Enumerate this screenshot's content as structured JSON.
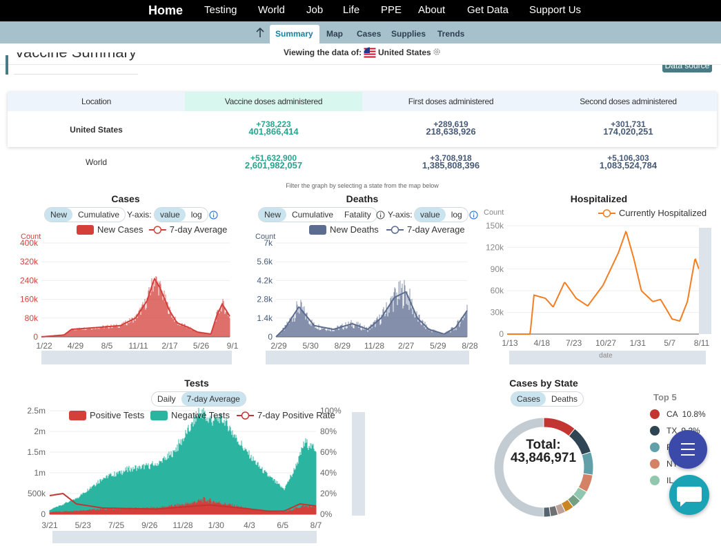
{
  "nav": {
    "items": [
      "Home",
      "Testing",
      "World",
      "Job",
      "Life",
      "PPE",
      "About",
      "Get Data",
      "Support Us"
    ]
  },
  "subnav": {
    "tabs": [
      "Summary",
      "Map",
      "Cases",
      "Supplies",
      "Trends"
    ],
    "active": "Summary"
  },
  "viewing": {
    "label": "Viewing the data of:",
    "country": "United States"
  },
  "section": {
    "title": "Vaccine Summary",
    "data_source": "Data source"
  },
  "table": {
    "headers": [
      "Location",
      "Vaccine doses administered",
      "First doses administered",
      "Second doses administered"
    ],
    "rows": [
      {
        "location": "United States",
        "doses_delta": "+738,223",
        "doses": "401,866,414",
        "first_delta": "+289,619",
        "first": "218,638,926",
        "second_delta": "+301,731",
        "second": "174,020,251"
      },
      {
        "location": "World",
        "doses_delta": "+51,632,900",
        "doses": "2,601,982,057",
        "first_delta": "+3,708,918",
        "first": "1,385,808,396",
        "second_delta": "+5,106,303",
        "second": "1,083,524,784"
      }
    ]
  },
  "filter_hint": "Filter the graph by selecting a state from the map below",
  "cases_chart": {
    "title": "Cases",
    "toggle": [
      "New",
      "Cumulative"
    ],
    "yaxis_label": "Y-axis:",
    "scale": [
      "value",
      "log"
    ],
    "legend": [
      "New Cases",
      "7-day Average"
    ],
    "count_label": "Count",
    "yticks": [
      "400k",
      "320k",
      "240k",
      "160k",
      "80k",
      "0"
    ],
    "xticks": [
      "1/22",
      "4/29",
      "8/5",
      "11/11",
      "2/17",
      "5/26",
      "9/1"
    ],
    "color": "#d43f3a"
  },
  "deaths_chart": {
    "title": "Deaths",
    "toggle": [
      "New",
      "Cumulative",
      "Fatality"
    ],
    "yaxis_label": "Y-axis:",
    "scale": [
      "value",
      "log"
    ],
    "legend": [
      "New Deaths",
      "7-day Average"
    ],
    "count_label": "Count",
    "yticks": [
      "7k",
      "5.6k",
      "4.2k",
      "2.8k",
      "1.4k",
      "0"
    ],
    "xticks": [
      "2/29",
      "5/30",
      "8/29",
      "11/28",
      "2/27",
      "5/29",
      "8/28"
    ],
    "color": "#5b6c8f"
  },
  "hosp_chart": {
    "title": "Hospitalized",
    "legend": [
      "Currently Hospitalized"
    ],
    "count_label": "Count",
    "yticks": [
      "150k",
      "120k",
      "90k",
      "60k",
      "30k",
      "0"
    ],
    "xticks": [
      "1/13",
      "4/18",
      "7/23",
      "10/27",
      "1/31",
      "5/7",
      "8/11"
    ],
    "slider_label": "date",
    "color": "#f57c1f"
  },
  "tests_chart": {
    "title": "Tests",
    "toggle": [
      "Daily",
      "7-day Average"
    ],
    "legend": [
      "Positive Tests",
      "Negative Tests",
      "7-day Positive Rate"
    ],
    "yticks": [
      "2.5m",
      "2m",
      "1.5m",
      "1m",
      "500k",
      "0"
    ],
    "y2ticks": [
      "100%",
      "80%",
      "60%",
      "40%",
      "20%",
      "0%"
    ],
    "xticks": [
      "3/21",
      "5/23",
      "7/25",
      "9/26",
      "11/28",
      "1/30",
      "4/3",
      "6/5",
      "8/7"
    ],
    "pos_color": "#d43f3a",
    "neg_color": "#2bb5a0"
  },
  "state_chart": {
    "title": "Cases by State",
    "toggle": [
      "Cases",
      "Deaths"
    ],
    "total_label": "Total:",
    "total": "43,846,971",
    "top_label": "Top 5",
    "top5": [
      {
        "state": "CA",
        "pct": "10.8%",
        "color": "#c23531"
      },
      {
        "state": "TX",
        "pct": "9.2%",
        "color": "#2f4554"
      },
      {
        "state": "FL",
        "pct": "",
        "color": "#61a0a8"
      },
      {
        "state": "NY",
        "pct": "",
        "color": "#d48265"
      },
      {
        "state": "IL",
        "pct": "",
        "color": "#91c7ae"
      }
    ]
  }
}
